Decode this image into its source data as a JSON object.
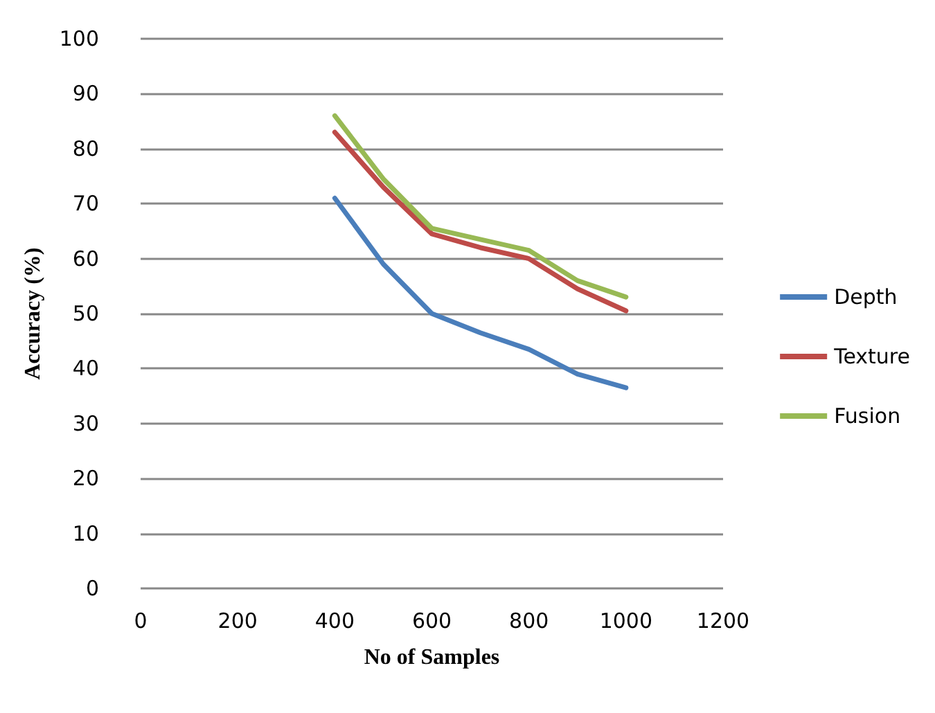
{
  "chart_data": {
    "type": "line",
    "xlabel": "No of Samples",
    "ylabel": "Accuracy (%)",
    "x": [
      400,
      500,
      600,
      700,
      800,
      900,
      1000
    ],
    "series": [
      {
        "name": "Depth",
        "color": "#4a7ebb",
        "values": [
          71,
          59,
          50,
          46.5,
          43.5,
          39,
          36.5
        ]
      },
      {
        "name": "Texture",
        "color": "#be4b48",
        "values": [
          83,
          73,
          64.5,
          62,
          60,
          54.5,
          50.5
        ]
      },
      {
        "name": "Fusion",
        "color": "#98b954",
        "values": [
          86,
          74.5,
          65.5,
          63.5,
          61.5,
          56,
          53
        ]
      }
    ],
    "xlim": [
      0,
      1200
    ],
    "xticks": [
      0,
      200,
      400,
      600,
      800,
      1000,
      1200
    ],
    "ylim": [
      0,
      100
    ],
    "yticks": [
      0,
      10,
      20,
      30,
      40,
      50,
      60,
      70,
      80,
      90,
      100
    ],
    "grid": "y",
    "legend": "right",
    "marker": "none",
    "line_style": "solid"
  }
}
